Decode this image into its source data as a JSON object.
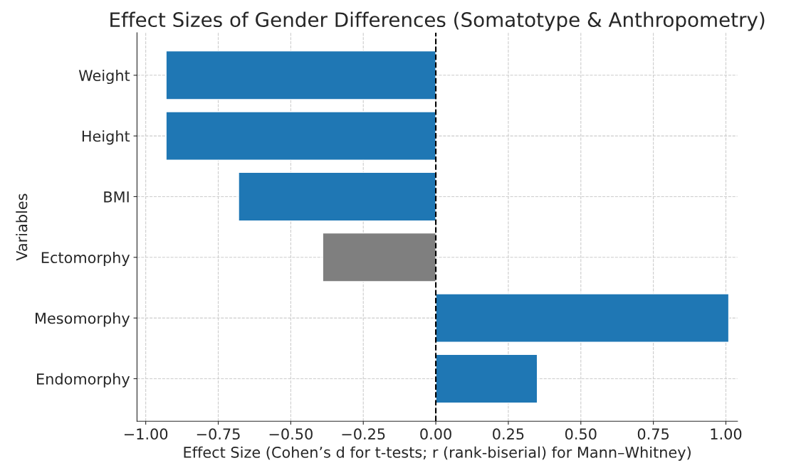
{
  "chart_data": {
    "type": "bar",
    "orientation": "horizontal",
    "title": "Effect Sizes of Gender Differences (Somatotype & Anthropometry)",
    "xlabel": "Effect Size (Cohen’s d for t-tests; r (rank-biserial) for Mann–Whitney)",
    "ylabel": "Variables",
    "categories": [
      "Weight",
      "Height",
      "BMI",
      "Ectomorphy",
      "Mesomorphy",
      "Endomorphy"
    ],
    "values": [
      -0.93,
      -0.93,
      -0.68,
      -0.39,
      1.01,
      0.35
    ],
    "colors": [
      "#1f77b4",
      "#1f77b4",
      "#1f77b4",
      "#7f7f7f",
      "#1f77b4",
      "#1f77b4"
    ],
    "xlim": [
      -1.03,
      1.04
    ],
    "xticks": [
      {
        "value": -1,
        "label": "−1.00"
      },
      {
        "value": -0.75,
        "label": "−0.75"
      },
      {
        "value": -0.5,
        "label": "−0.50"
      },
      {
        "value": -0.25,
        "label": "−0.25"
      },
      {
        "value": 0,
        "label": "0.00"
      },
      {
        "value": 0.25,
        "label": "0.25"
      },
      {
        "value": 0.5,
        "label": "0.50"
      },
      {
        "value": 0.75,
        "label": "0.75"
      },
      {
        "value": 1,
        "label": "1.00"
      }
    ],
    "ref_lines": [
      {
        "axis": "x",
        "value": 0,
        "color": "#000000",
        "line_style": "dashed"
      }
    ],
    "grid": true
  }
}
